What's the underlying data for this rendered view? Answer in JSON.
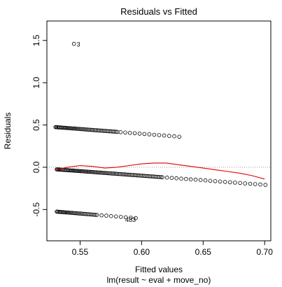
{
  "chart_data": {
    "type": "scatter",
    "title": "Residuals vs Fitted",
    "xlabel": "Fitted values",
    "xlabel_sub": "lm(result ~ eval + move_no)",
    "ylabel": "Residuals",
    "xlim": [
      0.523,
      0.705
    ],
    "ylim": [
      -0.87,
      1.73
    ],
    "x_ticks": [
      0.55,
      0.6,
      0.65,
      0.7
    ],
    "x_tick_labels": [
      "0.55",
      "0.60",
      "0.65",
      "0.70"
    ],
    "y_ticks": [
      -0.5,
      0.0,
      0.5,
      1.0,
      1.5
    ],
    "y_tick_labels": [
      "-0.5",
      "0.0",
      "0.5",
      "1.0",
      "1.5"
    ],
    "reference_line": {
      "y": 0,
      "style": "dotted",
      "color": "#999999"
    },
    "smoother": {
      "color": "#e00000",
      "x": [
        0.53,
        0.54,
        0.55,
        0.56,
        0.57,
        0.58,
        0.59,
        0.6,
        0.61,
        0.62,
        0.63,
        0.64,
        0.65,
        0.66,
        0.67,
        0.68,
        0.69,
        0.7
      ],
      "y": [
        -0.03,
        0.0,
        0.02,
        0.01,
        -0.01,
        0.0,
        0.02,
        0.04,
        0.05,
        0.05,
        0.03,
        0.01,
        -0.01,
        -0.03,
        -0.05,
        -0.07,
        -0.1,
        -0.14
      ]
    },
    "bands": [
      {
        "name": "upper",
        "x_start": 0.53,
        "x_end": 0.632,
        "y_start": 0.475,
        "y_end": 0.36
      },
      {
        "name": "middle",
        "x_start": 0.531,
        "x_end": 0.702,
        "y_start": -0.025,
        "y_end": -0.21
      },
      {
        "name": "lower",
        "x_start": 0.531,
        "x_end": 0.598,
        "y_start": -0.525,
        "y_end": -0.605
      }
    ],
    "outliers": [
      {
        "x": 0.545,
        "y": 1.46,
        "label": "3"
      }
    ],
    "annotations": [
      {
        "text": "483",
        "x": 0.591,
        "y": -0.645
      }
    ]
  }
}
